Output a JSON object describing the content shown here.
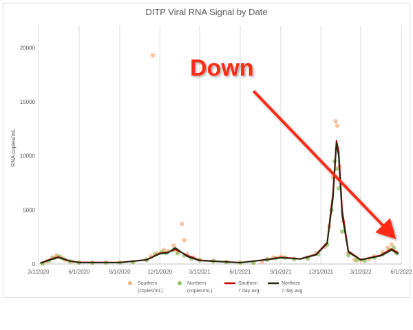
{
  "chart_data": {
    "type": "scatter",
    "title": "DITP Viral RNA Signal by Date",
    "xlabel": "",
    "ylabel": "RNA copies/mL",
    "xlim": [
      "2020-03-01",
      "2022-06-01"
    ],
    "ylim": [
      0,
      22000
    ],
    "x_ticks": [
      "3/1/2020",
      "6/1/2020",
      "9/1/2020",
      "12/1/2020",
      "3/1/2021",
      "6/1/2021",
      "9/1/2021",
      "12/1/2021",
      "3/1/2022",
      "6/1/2022"
    ],
    "y_ticks": [
      0,
      5000,
      10000,
      15000,
      20000
    ],
    "grid": "vertical",
    "legend_position": "bottom",
    "colors": {
      "southern_points": "#f4b183",
      "northern_points": "#8fc162",
      "southern_avg": "#c00000",
      "northern_avg": "#1f2a10",
      "callout": "#ff2a14"
    },
    "series": [
      {
        "name": "Southern (copies/mL)",
        "kind": "scatter",
        "points": [
          [
            "2020-03-10",
            60
          ],
          [
            "2020-03-20",
            250
          ],
          [
            "2020-04-01",
            600
          ],
          [
            "2020-04-10",
            800
          ],
          [
            "2020-04-20",
            650
          ],
          [
            "2020-05-01",
            350
          ],
          [
            "2020-05-15",
            200
          ],
          [
            "2020-06-01",
            150
          ],
          [
            "2020-07-01",
            120
          ],
          [
            "2020-08-01",
            130
          ],
          [
            "2020-09-01",
            140
          ],
          [
            "2020-10-01",
            160
          ],
          [
            "2020-11-01",
            350
          ],
          [
            "2020-11-10",
            700
          ],
          [
            "2020-11-15",
            19300
          ],
          [
            "2020-11-25",
            1000
          ],
          [
            "2020-12-10",
            1300
          ],
          [
            "2020-12-20",
            1200
          ],
          [
            "2021-01-01",
            1700
          ],
          [
            "2021-01-10",
            1100
          ],
          [
            "2021-01-20",
            3700
          ],
          [
            "2021-01-25",
            2200
          ],
          [
            "2021-02-01",
            900
          ],
          [
            "2021-02-15",
            600
          ],
          [
            "2021-03-01",
            400
          ],
          [
            "2021-04-01",
            300
          ],
          [
            "2021-05-01",
            200
          ],
          [
            "2021-06-01",
            130
          ],
          [
            "2021-07-01",
            120
          ],
          [
            "2021-07-20",
            200
          ],
          [
            "2021-08-01",
            450
          ],
          [
            "2021-08-15",
            600
          ],
          [
            "2021-09-01",
            700
          ],
          [
            "2021-10-01",
            500
          ],
          [
            "2021-11-01",
            600
          ],
          [
            "2021-11-20",
            1000
          ],
          [
            "2021-12-10",
            1600
          ],
          [
            "2021-12-20",
            3500
          ],
          [
            "2021-12-28",
            8000
          ],
          [
            "2022-01-03",
            13200
          ],
          [
            "2022-01-07",
            12800
          ],
          [
            "2022-01-12",
            9000
          ],
          [
            "2022-01-20",
            4000
          ],
          [
            "2022-02-01",
            1000
          ],
          [
            "2022-02-15",
            400
          ],
          [
            "2022-03-01",
            350
          ],
          [
            "2022-03-20",
            450
          ],
          [
            "2022-04-01",
            700
          ],
          [
            "2022-04-20",
            1100
          ],
          [
            "2022-05-01",
            1500
          ],
          [
            "2022-05-10",
            1800
          ],
          [
            "2022-05-20",
            1100
          ]
        ]
      },
      {
        "name": "Northern (copies/mL)",
        "kind": "scatter",
        "points": [
          [
            "2020-03-10",
            50
          ],
          [
            "2020-03-25",
            300
          ],
          [
            "2020-04-05",
            550
          ],
          [
            "2020-04-15",
            700
          ],
          [
            "2020-04-25",
            500
          ],
          [
            "2020-05-10",
            250
          ],
          [
            "2020-06-01",
            130
          ],
          [
            "2020-07-01",
            110
          ],
          [
            "2020-08-01",
            120
          ],
          [
            "2020-09-01",
            130
          ],
          [
            "2020-10-01",
            170
          ],
          [
            "2020-11-01",
            400
          ],
          [
            "2020-11-20",
            900
          ],
          [
            "2020-12-05",
            1100
          ],
          [
            "2020-12-15",
            1000
          ],
          [
            "2021-01-01",
            1300
          ],
          [
            "2021-01-10",
            1000
          ],
          [
            "2021-01-25",
            800
          ],
          [
            "2021-02-10",
            500
          ],
          [
            "2021-03-01",
            350
          ],
          [
            "2021-04-01",
            250
          ],
          [
            "2021-05-01",
            180
          ],
          [
            "2021-06-01",
            120
          ],
          [
            "2021-07-01",
            110
          ],
          [
            "2021-08-01",
            400
          ],
          [
            "2021-08-20",
            550
          ],
          [
            "2021-09-10",
            600
          ],
          [
            "2021-10-01",
            450
          ],
          [
            "2021-11-01",
            500
          ],
          [
            "2021-11-25",
            900
          ],
          [
            "2021-12-15",
            1800
          ],
          [
            "2021-12-25",
            5000
          ],
          [
            "2022-01-01",
            9500
          ],
          [
            "2022-01-05",
            8800
          ],
          [
            "2022-01-10",
            7000
          ],
          [
            "2022-01-18",
            3000
          ],
          [
            "2022-02-01",
            800
          ],
          [
            "2022-02-20",
            350
          ],
          [
            "2022-03-10",
            300
          ],
          [
            "2022-04-01",
            600
          ],
          [
            "2022-04-20",
            900
          ],
          [
            "2022-05-05",
            1300
          ],
          [
            "2022-05-15",
            1500
          ],
          [
            "2022-05-22",
            1000
          ]
        ]
      },
      {
        "name": "Southern 7 day avg",
        "kind": "line",
        "points": [
          [
            "2020-03-05",
            80
          ],
          [
            "2020-04-01",
            500
          ],
          [
            "2020-04-15",
            650
          ],
          [
            "2020-05-10",
            300
          ],
          [
            "2020-06-01",
            150
          ],
          [
            "2020-09-01",
            140
          ],
          [
            "2020-11-01",
            400
          ],
          [
            "2020-12-01",
            1000
          ],
          [
            "2020-12-20",
            1100
          ],
          [
            "2021-01-05",
            1350
          ],
          [
            "2021-02-01",
            800
          ],
          [
            "2021-03-01",
            350
          ],
          [
            "2021-06-01",
            130
          ],
          [
            "2021-08-01",
            420
          ],
          [
            "2021-09-01",
            620
          ],
          [
            "2021-10-15",
            480
          ],
          [
            "2021-11-20",
            900
          ],
          [
            "2021-12-15",
            2000
          ],
          [
            "2021-12-28",
            6500
          ],
          [
            "2022-01-05",
            11400
          ],
          [
            "2022-01-10",
            10500
          ],
          [
            "2022-01-18",
            5000
          ],
          [
            "2022-02-01",
            1200
          ],
          [
            "2022-03-01",
            400
          ],
          [
            "2022-04-15",
            800
          ],
          [
            "2022-05-10",
            1400
          ],
          [
            "2022-05-25",
            1000
          ]
        ]
      },
      {
        "name": "Northern 7 day avg",
        "kind": "line",
        "points": [
          [
            "2020-03-05",
            70
          ],
          [
            "2020-04-01",
            450
          ],
          [
            "2020-04-15",
            600
          ],
          [
            "2020-05-10",
            280
          ],
          [
            "2020-06-01",
            130
          ],
          [
            "2020-09-01",
            130
          ],
          [
            "2020-11-01",
            380
          ],
          [
            "2020-12-01",
            950
          ],
          [
            "2020-12-20",
            1050
          ],
          [
            "2021-01-05",
            1500
          ],
          [
            "2021-02-01",
            700
          ],
          [
            "2021-03-01",
            320
          ],
          [
            "2021-06-01",
            120
          ],
          [
            "2021-08-01",
            400
          ],
          [
            "2021-09-01",
            580
          ],
          [
            "2021-10-15",
            460
          ],
          [
            "2021-11-20",
            850
          ],
          [
            "2021-12-15",
            1900
          ],
          [
            "2021-12-28",
            6000
          ],
          [
            "2022-01-05",
            11200
          ],
          [
            "2022-01-10",
            10000
          ],
          [
            "2022-01-18",
            4500
          ],
          [
            "2022-02-01",
            1100
          ],
          [
            "2022-03-01",
            380
          ],
          [
            "2022-04-15",
            750
          ],
          [
            "2022-05-10",
            1300
          ],
          [
            "2022-05-25",
            950
          ]
        ]
      }
    ],
    "legend": [
      {
        "line1": "Southern",
        "line2": "(copies/mL)",
        "marker": "dot",
        "color": "#f4b183"
      },
      {
        "line1": "Northern",
        "line2": "(copies/mL)",
        "marker": "dot",
        "color": "#8fc162"
      },
      {
        "line1": "Southern",
        "line2": "7 day avg",
        "marker": "line",
        "color": "#c00000"
      },
      {
        "line1": "Northern",
        "line2": "7 day avg",
        "marker": "line",
        "color": "#1f2a10"
      }
    ]
  },
  "annotation": {
    "text": "Down",
    "arrow_from": [
      "2021-07-01",
      16000
    ],
    "arrow_to": [
      "2022-05-20",
      2300
    ]
  }
}
